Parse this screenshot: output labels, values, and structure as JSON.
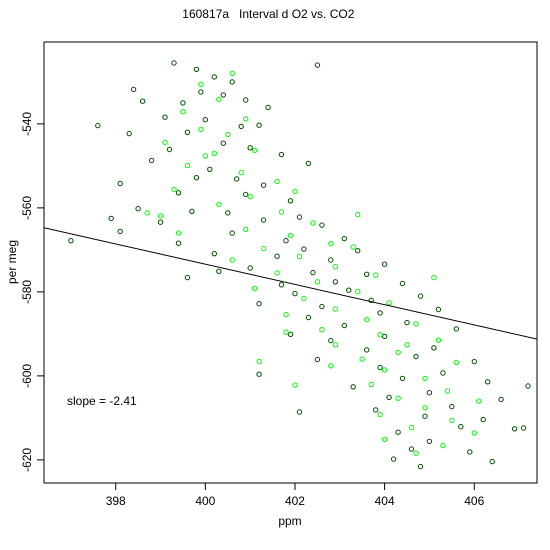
{
  "chart_data": {
    "type": "scatter",
    "title_id": "160817a",
    "title_text": "Interval d O2 vs. CO2",
    "xlabel": "ppm",
    "ylabel": "per meg",
    "xlim": [
      396.4,
      407.4
    ],
    "ylim": [
      -625.5,
      -520.5
    ],
    "xticks": [
      398,
      400,
      402,
      404,
      406
    ],
    "yticks": [
      -620,
      -600,
      -580,
      -560,
      -540
    ],
    "grid": false,
    "annotation": "slope =  -2.41",
    "fit_line": {
      "slope": -2.41,
      "intercept": 390.6
    },
    "series": [
      {
        "color": "#005000",
        "marker": "open-circle",
        "points": [
          [
            399.3,
            -525.5
          ],
          [
            399.8,
            -527.0
          ],
          [
            400.2,
            -528.8
          ],
          [
            400.6,
            -530.0
          ],
          [
            399.9,
            -532.4
          ],
          [
            400.4,
            -533.1
          ],
          [
            399.5,
            -535.0
          ],
          [
            398.6,
            -534.6
          ],
          [
            401.4,
            -536.1
          ],
          [
            400.9,
            -534.3
          ],
          [
            399.1,
            -538.4
          ],
          [
            400.0,
            -539.0
          ],
          [
            400.8,
            -540.6
          ],
          [
            401.2,
            -540.3
          ],
          [
            399.6,
            -542.0
          ],
          [
            398.3,
            -542.3
          ],
          [
            400.4,
            -544.6
          ],
          [
            401.0,
            -545.7
          ],
          [
            399.2,
            -546.1
          ],
          [
            401.7,
            -547.3
          ],
          [
            398.8,
            -548.7
          ],
          [
            400.1,
            -550.8
          ],
          [
            402.3,
            -549.4
          ],
          [
            399.8,
            -552.8
          ],
          [
            400.7,
            -553.1
          ],
          [
            401.3,
            -554.6
          ],
          [
            398.1,
            -554.2
          ],
          [
            399.4,
            -556.4
          ],
          [
            400.9,
            -556.8
          ],
          [
            401.9,
            -558.3
          ],
          [
            398.5,
            -560.2
          ],
          [
            399.7,
            -560.8
          ],
          [
            400.5,
            -561.2
          ],
          [
            402.1,
            -562.2
          ],
          [
            401.3,
            -562.9
          ],
          [
            399.0,
            -563.4
          ],
          [
            402.6,
            -564.1
          ],
          [
            398.1,
            -565.6
          ],
          [
            400.6,
            -566.0
          ],
          [
            401.8,
            -567.8
          ],
          [
            403.1,
            -567.3
          ],
          [
            399.4,
            -568.4
          ],
          [
            402.2,
            -569.8
          ],
          [
            400.2,
            -570.9
          ],
          [
            403.4,
            -570.2
          ],
          [
            401.6,
            -571.5
          ],
          [
            402.8,
            -572.4
          ],
          [
            404.0,
            -573.4
          ],
          [
            401.0,
            -574.3
          ],
          [
            402.4,
            -575.4
          ],
          [
            403.6,
            -575.8
          ],
          [
            399.6,
            -576.6
          ],
          [
            402.9,
            -577.6
          ],
          [
            401.7,
            -578.3
          ],
          [
            404.4,
            -578.0
          ],
          [
            403.2,
            -579.6
          ],
          [
            402.0,
            -580.4
          ],
          [
            404.8,
            -581.0
          ],
          [
            403.7,
            -582.0
          ],
          [
            401.2,
            -582.8
          ],
          [
            402.6,
            -583.5
          ],
          [
            405.2,
            -584.2
          ],
          [
            403.9,
            -585.0
          ],
          [
            402.3,
            -586.1
          ],
          [
            404.5,
            -587.3
          ],
          [
            403.1,
            -588.0
          ],
          [
            405.6,
            -588.8
          ],
          [
            401.9,
            -590.1
          ],
          [
            404.0,
            -590.6
          ],
          [
            402.8,
            -591.6
          ],
          [
            405.1,
            -593.3
          ],
          [
            403.6,
            -593.8
          ],
          [
            404.7,
            -595.4
          ],
          [
            402.5,
            -596.1
          ],
          [
            406.0,
            -596.6
          ],
          [
            403.9,
            -598.0
          ],
          [
            405.3,
            -599.3
          ],
          [
            404.4,
            -600.6
          ],
          [
            406.3,
            -601.4
          ],
          [
            403.3,
            -602.6
          ],
          [
            405.0,
            -604.0
          ],
          [
            404.1,
            -605.1
          ],
          [
            406.6,
            -605.6
          ],
          [
            405.5,
            -607.3
          ],
          [
            403.8,
            -608.1
          ],
          [
            404.9,
            -609.6
          ],
          [
            406.2,
            -610.4
          ],
          [
            405.7,
            -612.1
          ],
          [
            404.3,
            -613.4
          ],
          [
            406.9,
            -612.6
          ],
          [
            405.0,
            -615.6
          ],
          [
            404.6,
            -617.4
          ],
          [
            405.9,
            -618.1
          ],
          [
            404.2,
            -619.8
          ],
          [
            406.4,
            -620.4
          ],
          [
            404.8,
            -621.6
          ],
          [
            397.0,
            -567.8
          ],
          [
            397.6,
            -540.4
          ],
          [
            398.4,
            -531.8
          ],
          [
            397.9,
            -562.5
          ],
          [
            401.2,
            -599.6
          ],
          [
            402.1,
            -608.6
          ],
          [
            407.2,
            -602.4
          ],
          [
            407.1,
            -612.4
          ],
          [
            402.5,
            -526.0
          ],
          [
            400.3,
            -575.1
          ]
        ]
      },
      {
        "color": "#00ff00",
        "marker": "open-circle",
        "points": [
          [
            400.6,
            -528.0
          ],
          [
            399.9,
            -530.6
          ],
          [
            400.3,
            -534.2
          ],
          [
            399.5,
            -537.1
          ],
          [
            400.9,
            -538.8
          ],
          [
            399.9,
            -541.3
          ],
          [
            400.5,
            -542.5
          ],
          [
            399.1,
            -544.4
          ],
          [
            401.1,
            -546.3
          ],
          [
            400.0,
            -547.6
          ],
          [
            399.6,
            -549.9
          ],
          [
            400.8,
            -551.6
          ],
          [
            401.6,
            -553.7
          ],
          [
            399.3,
            -555.6
          ],
          [
            401.0,
            -557.3
          ],
          [
            402.0,
            -556.1
          ],
          [
            400.3,
            -559.2
          ],
          [
            401.7,
            -561.0
          ],
          [
            399.0,
            -561.9
          ],
          [
            402.4,
            -563.6
          ],
          [
            400.9,
            -565.1
          ],
          [
            401.9,
            -566.6
          ],
          [
            402.8,
            -568.5
          ],
          [
            401.3,
            -569.7
          ],
          [
            403.3,
            -569.3
          ],
          [
            402.1,
            -571.6
          ],
          [
            400.6,
            -572.4
          ],
          [
            402.9,
            -574.0
          ],
          [
            401.6,
            -575.5
          ],
          [
            403.8,
            -576.0
          ],
          [
            402.5,
            -577.6
          ],
          [
            401.1,
            -579.2
          ],
          [
            403.4,
            -579.9
          ],
          [
            402.2,
            -581.6
          ],
          [
            404.1,
            -582.6
          ],
          [
            402.9,
            -584.1
          ],
          [
            401.8,
            -585.4
          ],
          [
            403.6,
            -586.6
          ],
          [
            404.7,
            -587.6
          ],
          [
            402.6,
            -589.0
          ],
          [
            403.9,
            -590.2
          ],
          [
            405.2,
            -591.5
          ],
          [
            402.9,
            -592.6
          ],
          [
            404.3,
            -594.4
          ],
          [
            403.5,
            -596.0
          ],
          [
            405.6,
            -596.8
          ],
          [
            404.0,
            -598.6
          ],
          [
            402.8,
            -597.6
          ],
          [
            404.9,
            -600.6
          ],
          [
            403.7,
            -602.0
          ],
          [
            405.4,
            -603.6
          ],
          [
            404.3,
            -605.3
          ],
          [
            406.1,
            -606.0
          ],
          [
            404.9,
            -607.6
          ],
          [
            403.9,
            -609.2
          ],
          [
            405.5,
            -610.6
          ],
          [
            404.6,
            -612.3
          ],
          [
            406.0,
            -613.6
          ],
          [
            404.0,
            -615.1
          ],
          [
            405.3,
            -616.6
          ],
          [
            404.7,
            -618.4
          ],
          [
            398.7,
            -561.2
          ],
          [
            399.4,
            -566.0
          ],
          [
            401.2,
            -596.6
          ],
          [
            405.1,
            -576.6
          ],
          [
            403.4,
            -561.6
          ],
          [
            400.2,
            -547.0
          ],
          [
            401.8,
            -589.6
          ],
          [
            404.5,
            -592.6
          ],
          [
            402.0,
            -602.2
          ]
        ]
      }
    ]
  }
}
